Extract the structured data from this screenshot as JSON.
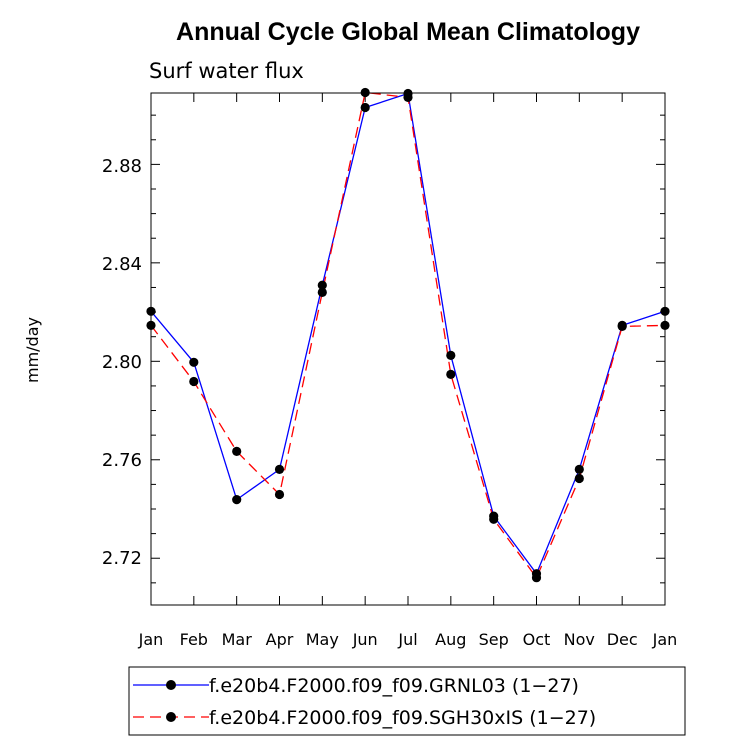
{
  "chart_data": {
    "type": "line",
    "title": "Annual Cycle Global Mean Climatology",
    "subtitle": "Surf water flux",
    "ylabel": "mm/day",
    "xlabel": "",
    "categories": [
      "Jan",
      "Feb",
      "Mar",
      "Apr",
      "May",
      "Jun",
      "Jul",
      "Aug",
      "Sep",
      "Oct",
      "Nov",
      "Dec",
      "Jan"
    ],
    "ylim": [
      2.701,
      2.909
    ],
    "yticks": [
      "2.72",
      "2.76",
      "2.80",
      "2.84",
      "2.88"
    ],
    "grid": false,
    "legend_placement": "bottom",
    "series": [
      {
        "name": "f.e20b4.F2000.f09_f09.GRNL03 (1−27)",
        "color": "#0000ff",
        "dash": "solid",
        "values": [
          2.8203,
          2.7996,
          2.7438,
          2.7561,
          2.8309,
          2.9031,
          2.9088,
          2.8024,
          2.7371,
          2.7137,
          2.7561,
          2.8146,
          2.8203
        ]
      },
      {
        "name": "f.e20b4.F2000.f09_f09.SGH30xIS (1−27)",
        "color": "#ff0000",
        "dash": "dashed",
        "values": [
          2.8146,
          2.7918,
          2.7634,
          2.7459,
          2.828,
          2.9092,
          2.9072,
          2.7947,
          2.7358,
          2.7121,
          2.7524,
          2.8142,
          2.8146
        ]
      }
    ]
  }
}
